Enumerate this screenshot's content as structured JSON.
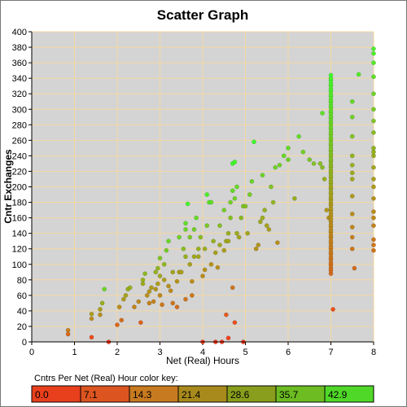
{
  "chart_data": {
    "type": "scatter",
    "title": "Scatter Graph",
    "xlabel": "Net (Real) Hours",
    "ylabel": "Cntr Exchanges",
    "xlim": [
      0,
      8
    ],
    "ylim": [
      0,
      400
    ],
    "xticks": [
      0,
      1,
      2,
      3,
      4,
      5,
      6,
      7,
      8
    ],
    "yticks": [
      0,
      20,
      40,
      60,
      80,
      100,
      120,
      140,
      160,
      180,
      200,
      220,
      240,
      260,
      280,
      300,
      320,
      340,
      360,
      380,
      400
    ],
    "grid": true,
    "colors": {
      "plot_background": "#d4d4d4",
      "grid": "#f5d7a0",
      "low": "#ff3a1a",
      "mid": "#b09a18",
      "high": "#3cff2a"
    },
    "color_key": {
      "caption": "Cntrs Per Net (Real) Hour color key:",
      "labels": [
        "0.0",
        "7.1",
        "14.3",
        "21.4",
        "28.6",
        "35.7",
        "42.9"
      ],
      "colors": [
        "#e8401c",
        "#dc5420",
        "#c87a20",
        "#a88a1c",
        "#889e1c",
        "#6cbc22",
        "#50d828"
      ]
    },
    "points": [
      [
        0.85,
        15
      ],
      [
        0.85,
        10
      ],
      [
        1.4,
        6
      ],
      [
        1.4,
        30
      ],
      [
        1.4,
        36
      ],
      [
        1.6,
        35
      ],
      [
        1.6,
        42
      ],
      [
        1.65,
        50
      ],
      [
        1.7,
        68
      ],
      [
        1.8,
        0
      ],
      [
        2.0,
        22
      ],
      [
        2.05,
        45
      ],
      [
        2.1,
        28
      ],
      [
        2.15,
        55
      ],
      [
        2.2,
        60
      ],
      [
        2.25,
        68
      ],
      [
        2.3,
        70
      ],
      [
        2.4,
        45
      ],
      [
        2.5,
        52
      ],
      [
        2.55,
        25
      ],
      [
        2.6,
        75
      ],
      [
        2.6,
        80
      ],
      [
        2.65,
        88
      ],
      [
        2.75,
        65
      ],
      [
        2.75,
        50
      ],
      [
        2.8,
        70
      ],
      [
        2.85,
        52
      ],
      [
        2.9,
        90
      ],
      [
        2.95,
        75
      ],
      [
        2.95,
        95
      ],
      [
        3.0,
        85
      ],
      [
        3.0,
        108
      ],
      [
        3.0,
        60
      ],
      [
        3.05,
        48
      ],
      [
        3.1,
        100
      ],
      [
        3.15,
        118
      ],
      [
        3.2,
        72
      ],
      [
        3.2,
        130
      ],
      [
        3.25,
        66
      ],
      [
        3.3,
        50
      ],
      [
        3.4,
        78
      ],
      [
        3.45,
        90
      ],
      [
        3.45,
        135
      ],
      [
        3.5,
        90
      ],
      [
        3.55,
        120
      ],
      [
        3.6,
        110
      ],
      [
        3.6,
        145
      ],
      [
        3.6,
        153
      ],
      [
        3.65,
        178
      ],
      [
        3.7,
        100
      ],
      [
        3.7,
        135
      ],
      [
        3.75,
        78
      ],
      [
        3.75,
        60
      ],
      [
        3.8,
        145
      ],
      [
        3.8,
        110
      ],
      [
        3.85,
        160
      ],
      [
        3.9,
        120
      ],
      [
        3.9,
        110
      ],
      [
        3.95,
        135
      ],
      [
        4.0,
        85
      ],
      [
        4.05,
        93
      ],
      [
        4.05,
        120
      ],
      [
        4.1,
        150
      ],
      [
        4.1,
        190
      ],
      [
        4.15,
        180
      ],
      [
        4.2,
        180
      ],
      [
        4.25,
        130
      ],
      [
        4.3,
        115
      ],
      [
        4.35,
        96
      ],
      [
        4.4,
        150
      ],
      [
        4.5,
        118
      ],
      [
        4.5,
        170
      ],
      [
        4.55,
        130
      ],
      [
        4.6,
        140
      ],
      [
        4.6,
        130
      ],
      [
        4.65,
        160
      ],
      [
        4.65,
        180
      ],
      [
        4.7,
        195
      ],
      [
        4.7,
        230
      ],
      [
        4.75,
        232
      ],
      [
        4.75,
        185
      ],
      [
        4.8,
        200
      ],
      [
        4.8,
        140
      ],
      [
        4.85,
        135
      ],
      [
        4.9,
        160
      ],
      [
        4.95,
        175
      ],
      [
        5.0,
        175
      ],
      [
        5.05,
        140
      ],
      [
        5.1,
        190
      ],
      [
        5.15,
        207
      ],
      [
        5.2,
        258
      ],
      [
        5.25,
        120
      ],
      [
        5.3,
        125
      ],
      [
        5.35,
        155
      ],
      [
        5.4,
        160
      ],
      [
        5.4,
        215
      ],
      [
        5.45,
        170
      ],
      [
        5.5,
        150
      ],
      [
        5.55,
        145
      ],
      [
        5.6,
        200
      ],
      [
        5.65,
        180
      ],
      [
        5.7,
        225
      ],
      [
        5.75,
        128
      ],
      [
        5.8,
        228
      ],
      [
        5.9,
        240
      ],
      [
        6.0,
        250
      ],
      [
        6.0,
        235
      ],
      [
        6.15,
        185
      ],
      [
        6.25,
        265
      ],
      [
        6.35,
        245
      ],
      [
        6.5,
        235
      ],
      [
        6.6,
        230
      ],
      [
        6.75,
        230
      ],
      [
        6.8,
        225
      ],
      [
        6.85,
        210
      ],
      [
        6.8,
        295
      ],
      [
        6.9,
        170
      ],
      [
        6.95,
        160
      ],
      [
        7.05,
        42
      ],
      [
        7.55,
        95
      ],
      [
        7.5,
        120
      ],
      [
        7.5,
        135
      ],
      [
        7.5,
        148
      ],
      [
        7.5,
        165
      ],
      [
        7.5,
        188
      ],
      [
        7.5,
        210
      ],
      [
        7.5,
        218
      ],
      [
        7.5,
        228
      ],
      [
        7.5,
        240
      ],
      [
        7.5,
        265
      ],
      [
        7.5,
        290
      ],
      [
        7.5,
        310
      ],
      [
        7.65,
        345
      ],
      [
        8.0,
        118
      ],
      [
        8.0,
        125
      ],
      [
        8.0,
        132
      ],
      [
        8.0,
        150
      ],
      [
        8.0,
        160
      ],
      [
        8.0,
        168
      ],
      [
        8.0,
        185
      ],
      [
        8.0,
        200
      ],
      [
        8.0,
        210
      ],
      [
        8.0,
        225
      ],
      [
        8.0,
        240
      ],
      [
        8.0,
        245
      ],
      [
        8.0,
        250
      ],
      [
        8.0,
        270
      ],
      [
        8.0,
        285
      ],
      [
        8.0,
        300
      ],
      [
        8.0,
        320
      ],
      [
        8.0,
        342
      ],
      [
        8.0,
        360
      ],
      [
        8.0,
        372
      ],
      [
        8.0,
        378
      ],
      [
        4.45,
        0
      ],
      [
        4.0,
        0
      ],
      [
        4.95,
        0
      ],
      [
        4.6,
        5
      ],
      [
        4.55,
        35
      ],
      [
        4.75,
        25
      ],
      [
        4.7,
        70
      ],
      [
        4.3,
        0
      ],
      [
        3.4,
        45
      ],
      [
        3.6,
        55
      ],
      [
        3.1,
        80
      ],
      [
        3.3,
        90
      ],
      [
        2.9,
        68
      ],
      [
        2.7,
        60
      ],
      [
        4.2,
        100
      ],
      [
        4.4,
        125
      ]
    ],
    "column_at_7": {
      "x": 7.0,
      "y_min": 88,
      "y_max": 345
    }
  }
}
